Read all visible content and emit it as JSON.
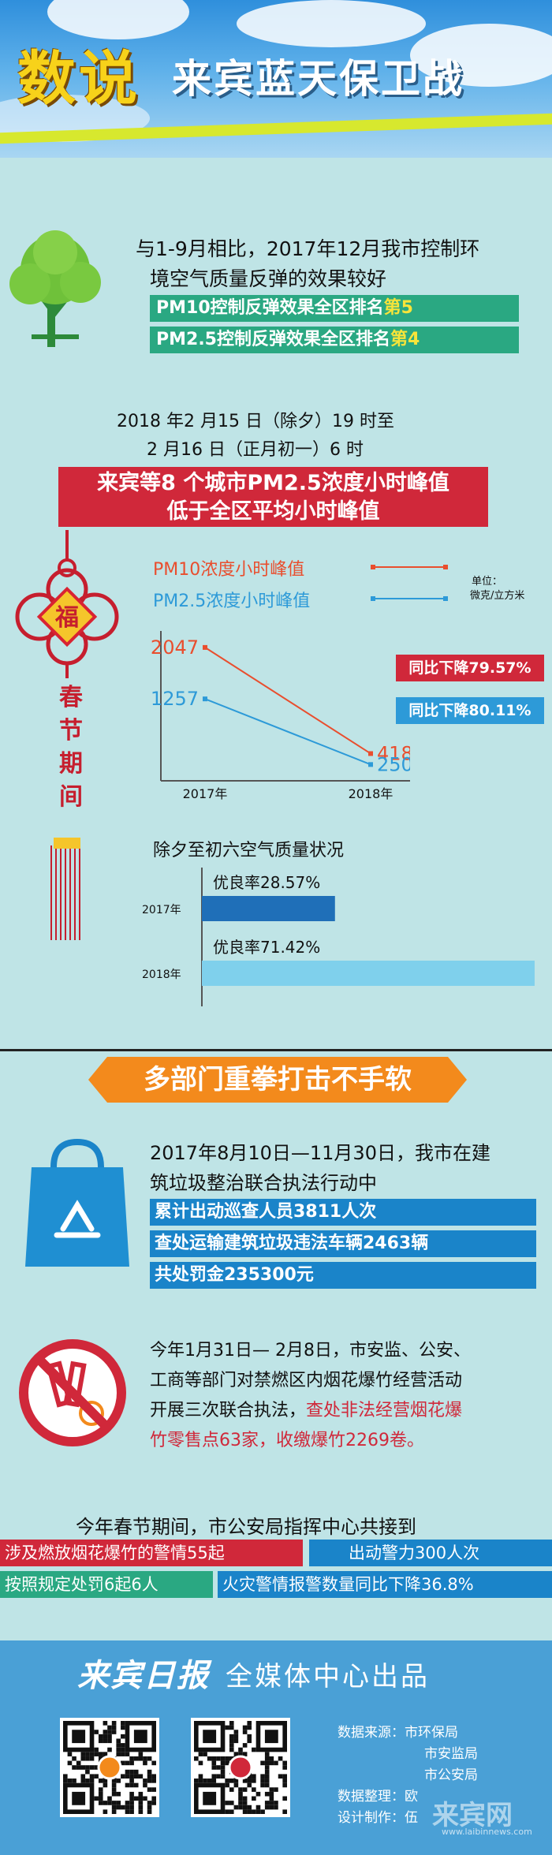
{
  "header": {
    "title_highlight": "数说",
    "title_rest": "来宾蓝天保卫战"
  },
  "section1": {
    "intro_line1": "与1-9月相比，2017年12月我市控制环",
    "intro_line2": "境空气质量反弹的效果较好",
    "pm10_text": "PM10控制反弹效果全区排名",
    "pm10_rank": "第5",
    "pm25_text": "PM2.5控制反弹效果全区排名",
    "pm25_rank": "第4"
  },
  "section2": {
    "date_line1": "2018 年2 月15 日（除夕）19 时至",
    "date_line2": "2 月16 日（正月初一）6 时",
    "banner_line1": "来宾等8 个城市PM2.5浓度小时峰值",
    "banner_line2": "低于全区平均小时峰值",
    "knot_char": "福",
    "vertical_label": [
      "春",
      "节",
      "期",
      "间"
    ],
    "legend_pm10": "PM10浓度小时峰值",
    "legend_pm25": "PM2.5浓度小时峰值",
    "unit_line1": "单位：",
    "unit_line2": "微克/立方米",
    "drop_pm10": "同比下降79.57%",
    "drop_pm25": "同比下降80.11%",
    "aq_title": "除夕至初六空气质量状况",
    "rate_2017": "优良率28.57%",
    "rate_2018": "优良率71.42%",
    "year_2017": "2017年",
    "year_2018": "2018年"
  },
  "chart_data": [
    {
      "type": "line",
      "x": [
        "2017年",
        "2018年"
      ],
      "series": [
        {
          "name": "PM10浓度小时峰值",
          "values": [
            2047,
            418
          ],
          "color": "#e94e2e"
        },
        {
          "name": "PM2.5浓度小时峰值",
          "values": [
            1257,
            250
          ],
          "color": "#2d9ad8"
        }
      ]
    },
    {
      "type": "bar",
      "categories": [
        "2017年",
        "2018年"
      ],
      "values": [
        28.57,
        71.42
      ],
      "labels": [
        "优良率28.57%",
        "优良率71.42%"
      ],
      "colors": [
        "#1f6fb8",
        "#7fd0ec"
      ]
    }
  ],
  "section3": {
    "banner": "多部门重拳打击不手软",
    "block1_line1": "2017年8月10日—11月30日，我市在建",
    "block1_line2": "筑垃圾整治联合执法行动中",
    "stat1": "累计出动巡查人员3811人次",
    "stat2": "查处运输建筑垃圾违法车辆2463辆",
    "stat3": "共处罚金235300元",
    "block2_line1": "今年1月31日— 2月8日，市安监、公安、",
    "block2_line2": "工商等部门对禁燃区内烟花爆竹经营活动",
    "block2_line3": "开展三次联合执法，",
    "block2_highlight": "查处非法经营烟花爆",
    "block2_line4_highlight": "竹零售点63家，收缴爆竹2269卷。",
    "block3_heading": "今年春节期间，市公安局指挥中心共接到",
    "strip1": "涉及燃放烟花爆竹的警情55起",
    "strip2": "出动警力300人次",
    "strip3": "按照规定处罚6起6人",
    "strip4": "火灾警情报警数量同比下降36.8%"
  },
  "footer": {
    "logo_calligraphy": "来宾日报",
    "producer": "全媒体中心出品",
    "source_label": "数据来源：",
    "source_1": "市环保局",
    "source_2": "市安监局",
    "source_3": "市公安局",
    "compile_label": "数据整理：",
    "compile_value": "欧",
    "design_label": "设计制作：",
    "design_value": "伍",
    "watermark": "来宾网",
    "watermark_url": "www.laibinnews.com"
  },
  "colors": {
    "background": "#bfe4e6",
    "accent_red": "#d0283a",
    "accent_teal": "#2aa882",
    "accent_blue": "#1a84c9",
    "accent_orange": "#f38a1c",
    "title_yellow": "#f7d21a"
  }
}
